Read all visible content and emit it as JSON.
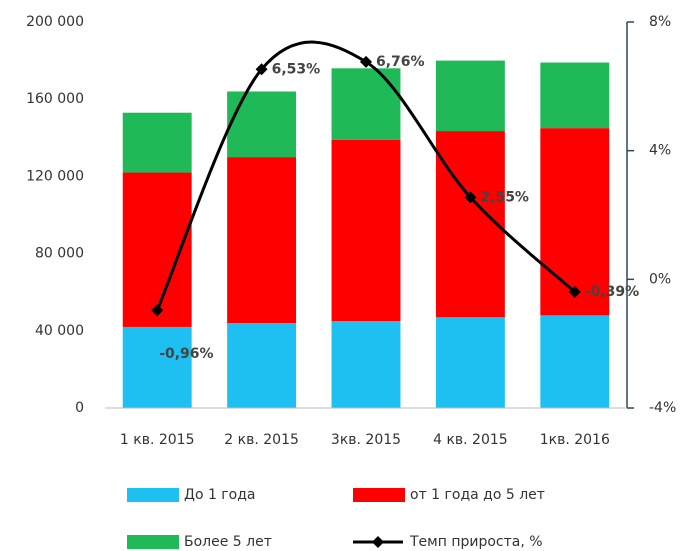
{
  "chart_data": {
    "type": "bar",
    "categories": [
      "1 кв. 2015",
      "2 кв. 2015",
      "3кв. 2015",
      "4 кв. 2015",
      "1кв. 2016"
    ],
    "series": [
      {
        "name": "До 1 года",
        "color": "#1ec0f2",
        "values": [
          42000,
          44000,
          45000,
          47000,
          48000
        ]
      },
      {
        "name": "от 1 года до 5 лет",
        "color": "#ff0000",
        "values": [
          80000,
          86000,
          94000,
          96500,
          97000
        ]
      },
      {
        "name": "Более 5 лет",
        "color": "#1fb957",
        "values": [
          31000,
          34000,
          37000,
          36500,
          34000
        ]
      },
      {
        "name": "Темп прироста, %",
        "color": "#000000",
        "type": "line",
        "axis": "y2",
        "values": [
          -0.96,
          6.53,
          6.76,
          2.55,
          -0.39
        ],
        "value_labels": [
          "-0,96%",
          "6,53%",
          "6,76%",
          "2,55%",
          "-0,39%"
        ]
      }
    ],
    "ylim": [
      0,
      200000
    ],
    "yticks": [
      0,
      {
        "value": 40000,
        "label": "40 000"
      },
      {
        "value": 80000,
        "label": "80 000"
      },
      {
        "value": 120000,
        "label": "120 000"
      },
      {
        "value": 160000,
        "label": "160 000"
      },
      {
        "value": 200000,
        "label": "200 000"
      }
    ],
    "y2lim": [
      -4,
      8
    ],
    "y2ticks": [
      {
        "value": -4,
        "label": "-4%"
      },
      {
        "value": 0,
        "label": "0%"
      },
      {
        "value": 4,
        "label": "4%"
      },
      {
        "value": 8,
        "label": "8%"
      }
    ]
  }
}
